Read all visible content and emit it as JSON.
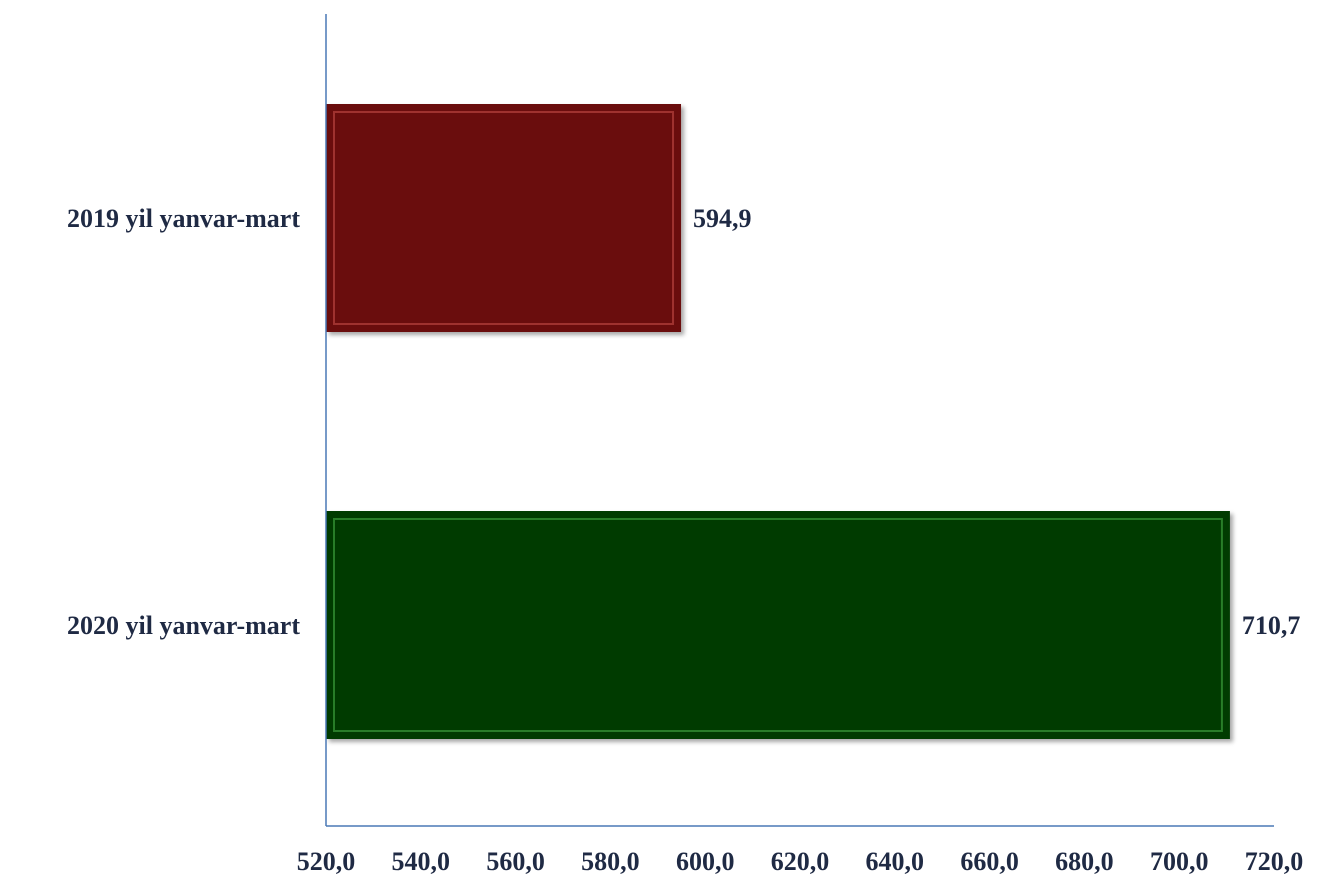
{
  "chart_data": {
    "type": "bar",
    "orientation": "horizontal",
    "title": "",
    "xlabel": "",
    "ylabel": "",
    "categories": [
      "2019 yil yanvar-mart",
      "2020 yil yanvar-mart"
    ],
    "values": [
      594.9,
      710.7
    ],
    "value_labels": [
      "594,9",
      "710,7"
    ],
    "bar_colors": [
      "#6b1010",
      "#003a05"
    ],
    "bar_edge_colors": [
      "#a83a36",
      "#2f8a2f"
    ],
    "xlim": [
      520,
      720
    ],
    "x_ticks": [
      520,
      540,
      560,
      580,
      600,
      620,
      640,
      660,
      680,
      700,
      720
    ],
    "x_tick_labels": [
      "520,0",
      "540,0",
      "560,0",
      "580,0",
      "600,0",
      "620,0",
      "640,0",
      "660,0",
      "680,0",
      "700,0",
      "720,0"
    ],
    "axis_color": "#4a78b5",
    "text_color": "#1f2a44",
    "grid": false,
    "legend": "none"
  }
}
